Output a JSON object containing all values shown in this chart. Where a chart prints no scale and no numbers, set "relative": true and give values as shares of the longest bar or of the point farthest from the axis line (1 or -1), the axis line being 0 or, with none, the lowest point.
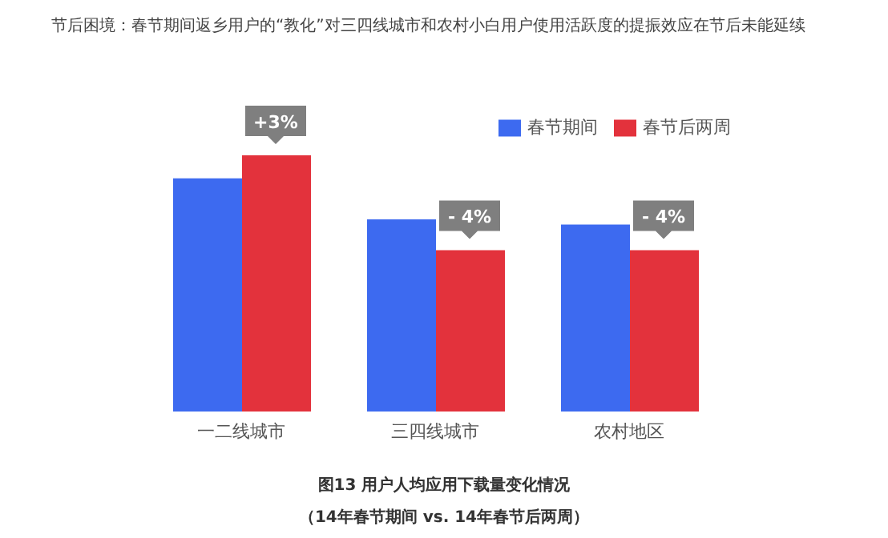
{
  "chart_data": {
    "type": "bar",
    "title": "节后困境：春节期间返乡用户的“教化”对三四线城市和农村小白用户使用活跃度的提振效应在节后未能延续",
    "subtitle": "图13 用户人均应用下载量变化情况",
    "annotations": [
      "（14年春节期间 vs. 14年春节后两周）",
      {
        "text": "+3%",
        "x": "一二线城市",
        "y": 1
      },
      {
        "text": "- 4%",
        "x": "三四线城市",
        "y": 0.63
      },
      {
        "text": "- 4%",
        "x": "农村地区",
        "y": 0.63
      }
    ],
    "categories": [
      "一二线城市",
      "三四线城市",
      "农村地区"
    ],
    "relative": true,
    "legend": "top right",
    "series": [
      {
        "name": "春节期间",
        "color": "#3d6af0",
        "values": [
          0.91,
          0.75,
          0.73
        ]
      },
      {
        "name": "春节后两周",
        "color": "#e3323c",
        "values": [
          1,
          0.63,
          0.63
        ]
      }
    ]
  }
}
